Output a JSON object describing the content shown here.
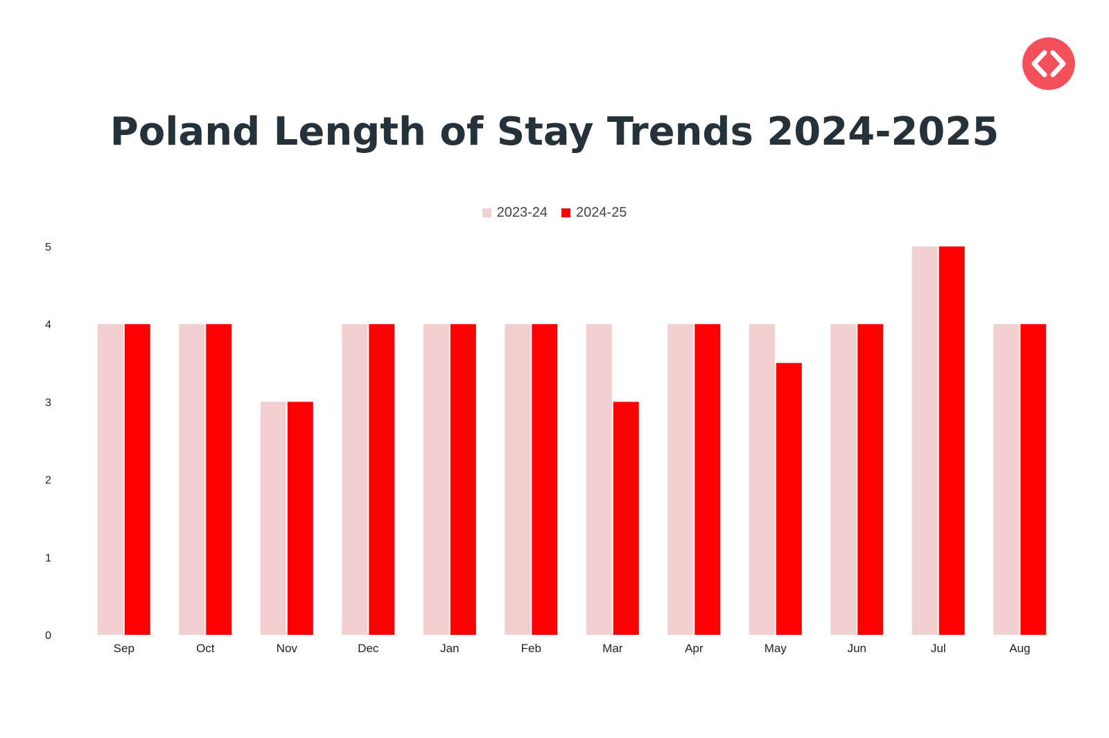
{
  "title": "Poland Length of Stay Trends 2024-2025",
  "logo": {
    "icon": "code-brackets-icon",
    "color": "#f4505a"
  },
  "colors": {
    "series_2023": "#f2cfcf",
    "series_2024": "#ff0000",
    "title": "#26323a"
  },
  "chart_data": {
    "type": "bar",
    "title": "Poland Length of Stay Trends 2024-2025",
    "xlabel": "",
    "ylabel": "",
    "categories": [
      "Sep",
      "Oct",
      "Nov",
      "Dec",
      "Jan",
      "Feb",
      "Mar",
      "Apr",
      "May",
      "Jun",
      "Jul",
      "Aug"
    ],
    "series": [
      {
        "name": "2023-24",
        "color": "#f2cfcf",
        "values": [
          4,
          4,
          3,
          4,
          4,
          4,
          4,
          4,
          4,
          4,
          5,
          4
        ]
      },
      {
        "name": "2024-25",
        "color": "#ff0000",
        "values": [
          4,
          4,
          3,
          4,
          4,
          4,
          3,
          4,
          3.5,
          4,
          5,
          4
        ]
      }
    ],
    "ylim": [
      0,
      5
    ],
    "yticks": [
      "0",
      "1",
      "2",
      "3",
      "4",
      "5"
    ],
    "grid": false,
    "legend": "top-center"
  }
}
